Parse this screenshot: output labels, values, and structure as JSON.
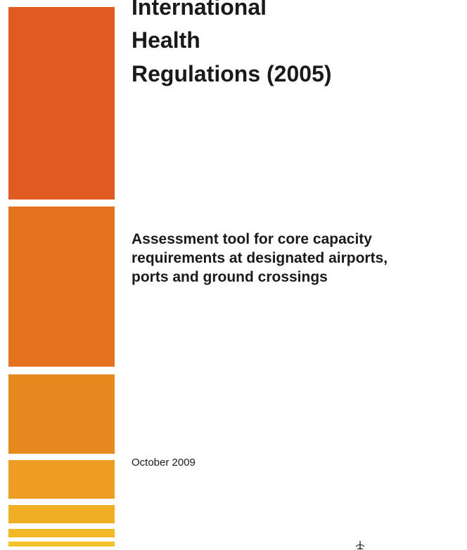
{
  "cover": {
    "title_lines": [
      "International",
      "Health",
      "Regulations (2005)"
    ],
    "subtitle_lines": [
      "Assessment tool for core capacity",
      "requirements at designated airports,",
      "ports and ground crossings"
    ],
    "date": "October 2009"
  },
  "colors": {
    "stripe_1": "#e05a22",
    "stripe_2": "#e4721f",
    "stripe_3": "#e8891f",
    "stripe_4": "#ec9d22",
    "stripe_5": "#f0ae24",
    "stripe_6": "#f2b826",
    "stripe_7": "#f4c12a",
    "text": "#1a1a1a"
  },
  "icons": {
    "bottom_emblem": "emblem-fragment-icon"
  }
}
